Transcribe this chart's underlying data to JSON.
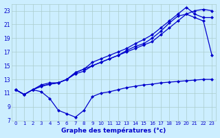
{
  "title": "Graphe des températures (°c)",
  "bg_color": "#cceeff",
  "grid_color": "#aacccc",
  "line_color": "#0000cc",
  "xlim": [
    -0.5,
    23.5
  ],
  "ylim": [
    7,
    24
  ],
  "xticks": [
    0,
    1,
    2,
    3,
    4,
    5,
    6,
    7,
    8,
    9,
    10,
    11,
    12,
    13,
    14,
    15,
    16,
    17,
    18,
    19,
    20,
    21,
    22,
    23
  ],
  "yticks": [
    7,
    9,
    11,
    13,
    15,
    17,
    19,
    21,
    23
  ],
  "series": [
    {
      "x": [
        0,
        1,
        2,
        3,
        4,
        5,
        6,
        7,
        8,
        9,
        10,
        11,
        12,
        13,
        14,
        15,
        16,
        17,
        18,
        19,
        20,
        21,
        22,
        23
      ],
      "y": [
        11.5,
        10.8,
        11.5,
        12.2,
        12.5,
        12.5,
        13.0,
        14.0,
        14.5,
        15.0,
        15.5,
        16.0,
        16.5,
        17.0,
        17.5,
        18.0,
        18.5,
        19.5,
        20.5,
        21.5,
        22.5,
        23.0,
        23.2,
        23.0
      ],
      "marker": "D",
      "markersize": 2
    },
    {
      "x": [
        0,
        1,
        2,
        3,
        4,
        5,
        6,
        7,
        8,
        9,
        10,
        11,
        12,
        13,
        14,
        15,
        16,
        17,
        18,
        19,
        20,
        21,
        22,
        23
      ],
      "y": [
        11.5,
        10.8,
        11.5,
        12.0,
        12.3,
        12.5,
        13.0,
        14.0,
        14.5,
        15.5,
        16.0,
        16.5,
        17.0,
        17.5,
        18.2,
        18.8,
        19.5,
        20.5,
        21.5,
        22.5,
        23.5,
        22.5,
        22.0,
        22.0
      ],
      "marker": "D",
      "markersize": 2
    },
    {
      "x": [
        0,
        1,
        2,
        3,
        4,
        5,
        6,
        7,
        8,
        9,
        10,
        11,
        12,
        13,
        14,
        15,
        16,
        17,
        18,
        19,
        20,
        21,
        22,
        23
      ],
      "y": [
        11.5,
        10.8,
        11.5,
        12.0,
        12.3,
        12.5,
        13.0,
        13.8,
        14.2,
        15.0,
        15.5,
        16.0,
        16.5,
        17.2,
        17.8,
        18.2,
        19.0,
        20.0,
        21.2,
        22.2,
        22.5,
        22.0,
        21.5,
        16.5
      ],
      "marker": "D",
      "markersize": 2
    },
    {
      "x": [
        0,
        1,
        2,
        3,
        4,
        5,
        6,
        7,
        8,
        9,
        10,
        11,
        12,
        13,
        14,
        15,
        16,
        17,
        18,
        19,
        20,
        21,
        22,
        23
      ],
      "y": [
        11.5,
        10.8,
        11.5,
        11.2,
        10.2,
        8.5,
        8.0,
        7.5,
        8.5,
        10.5,
        11.0,
        11.2,
        11.5,
        11.8,
        12.0,
        12.2,
        12.3,
        12.5,
        12.6,
        12.7,
        12.8,
        12.9,
        13.0,
        13.0
      ],
      "marker": "D",
      "markersize": 2
    }
  ]
}
